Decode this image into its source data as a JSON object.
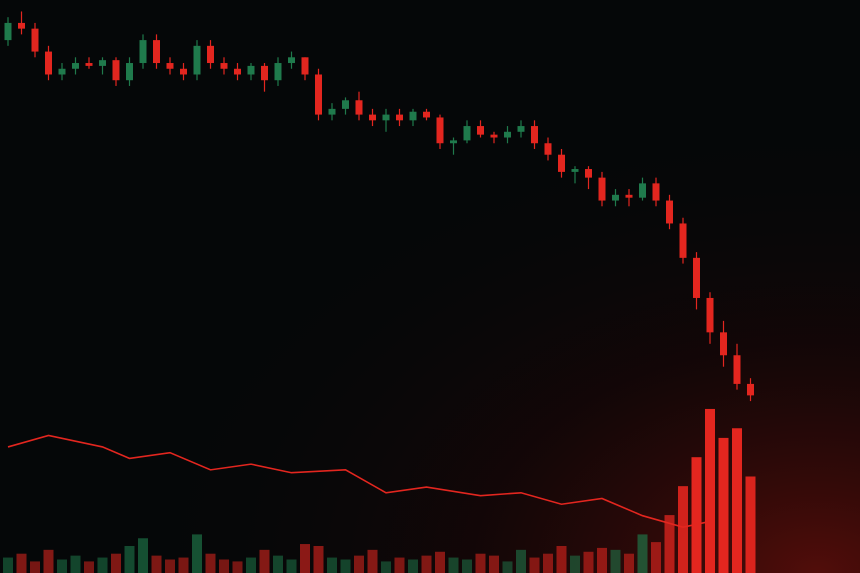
{
  "chart_data": {
    "type": "candlestick",
    "open": [
      93,
      96,
      95,
      91,
      87,
      88,
      89,
      88.5,
      89.5,
      86,
      89,
      93,
      89,
      88,
      87,
      92,
      89,
      88,
      87,
      88.5,
      86,
      89,
      90,
      87,
      80,
      81,
      82.5,
      80,
      79,
      80,
      79,
      80.5,
      79.5,
      75,
      75.5,
      78,
      76.5,
      76,
      77,
      78,
      75,
      73,
      70,
      70.5,
      69,
      65,
      66,
      65.5,
      68,
      65,
      61,
      55,
      48,
      42,
      38,
      33
    ],
    "high": [
      97,
      98,
      96,
      92,
      89,
      90,
      90,
      90,
      90,
      90,
      94,
      94,
      90,
      89,
      93,
      93,
      90,
      89,
      89,
      89,
      90,
      91,
      90,
      88,
      82,
      83,
      84,
      81,
      81,
      81,
      81,
      81,
      80,
      76,
      79,
      79,
      77,
      78,
      79,
      79,
      76,
      74,
      71,
      71,
      70,
      67,
      67,
      69,
      69,
      66,
      62,
      56,
      49,
      44,
      40,
      34
    ],
    "low": [
      92,
      94,
      90,
      86,
      86,
      87,
      88,
      87,
      85,
      85,
      88,
      88,
      87,
      86,
      86,
      88,
      87,
      86,
      86,
      84,
      85,
      88,
      86,
      79,
      79,
      80,
      79,
      78,
      77,
      78,
      78,
      79,
      74,
      73,
      75,
      76,
      75,
      75,
      76,
      74,
      72,
      69,
      68,
      67,
      64,
      64,
      64,
      65,
      64,
      60,
      54,
      46,
      40,
      36,
      32,
      30
    ],
    "close": [
      96,
      95,
      91,
      87,
      88,
      89,
      88.5,
      89.5,
      86,
      89,
      93,
      89,
      88,
      87,
      92,
      89,
      88,
      87,
      88.5,
      86,
      89,
      90,
      87,
      80,
      81,
      82.5,
      80,
      79,
      80,
      79,
      80.5,
      79.5,
      75,
      75.5,
      78,
      76.5,
      76,
      77,
      78,
      75,
      73,
      70,
      70.5,
      69,
      65,
      66,
      65.5,
      68,
      65,
      61,
      55,
      48,
      42,
      38,
      33,
      31
    ],
    "volume": [
      8,
      10,
      6,
      12,
      7,
      9,
      6,
      8,
      10,
      14,
      18,
      9,
      7,
      8,
      20,
      10,
      7,
      6,
      8,
      12,
      9,
      7,
      15,
      14,
      8,
      7,
      9,
      12,
      6,
      8,
      7,
      9,
      11,
      8,
      7,
      10,
      9,
      6,
      12,
      8,
      10,
      14,
      9,
      11,
      13,
      12,
      10,
      20,
      16,
      30,
      45,
      60,
      85,
      70,
      75,
      50
    ],
    "ylim": [
      0,
      100
    ],
    "volume_ylim": [
      0,
      100
    ],
    "up_color": "#1f7a4c",
    "down_color": "#e3261f",
    "line": {
      "color": "#e3261f",
      "x": [
        0,
        3,
        7,
        9,
        12,
        15,
        18,
        21,
        25,
        28,
        31,
        35,
        38,
        41,
        44,
        47,
        50,
        52
      ],
      "values": [
        22,
        24,
        22,
        20,
        21,
        18,
        19,
        17.5,
        18,
        14,
        15,
        13.5,
        14,
        12,
        13,
        10,
        8,
        9
      ]
    }
  }
}
